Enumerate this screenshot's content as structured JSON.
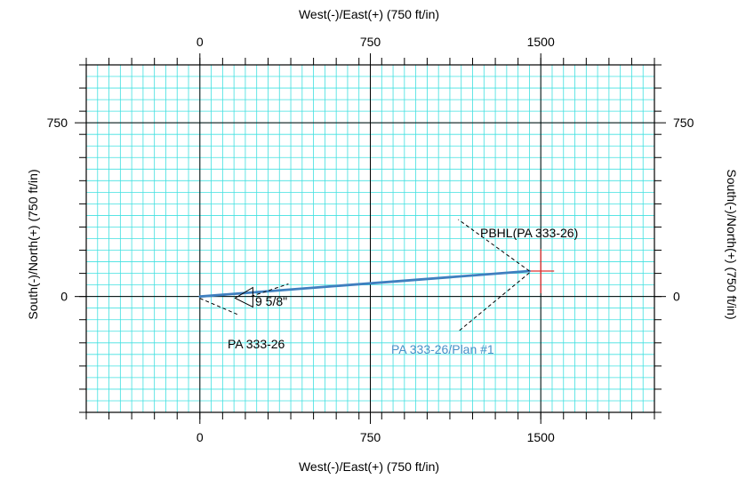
{
  "chart_data": {
    "type": "line",
    "title": "",
    "xlabel": "West(-)/East(+) (750 ft/in)",
    "ylabel": "South(-)/North(+) (750 ft/in)",
    "xlim": [
      -500,
      2000
    ],
    "ylim": [
      -500,
      1000
    ],
    "x_ticks": [
      0,
      750,
      1500
    ],
    "y_ticks": [
      0,
      750
    ],
    "x_tick_labels": [
      "0",
      "750",
      "1500"
    ],
    "y_tick_labels": [
      "0",
      "750"
    ],
    "grid": true,
    "series": [
      {
        "name": "PA 333-26/Plan #1",
        "color": "#3f7fbf",
        "x": [
          0,
          1450
        ],
        "y": [
          0,
          110
        ]
      }
    ],
    "annotations": [
      {
        "text": "PBHL(PA 333-26)",
        "x": 1285,
        "y": 280
      },
      {
        "text": "9 5/8\"",
        "x": 172,
        "y": -7
      },
      {
        "text": "PA 333-26",
        "x": 30,
        "y": -7
      },
      {
        "text": "PA 333-26/Plan #1",
        "x": 1285,
        "y": 3
      }
    ],
    "target": {
      "x": 1500,
      "y": 110,
      "color": "#e03030"
    }
  },
  "colors": {
    "grid": "#40e0e0",
    "axis": "#000000",
    "plan": "#3f7fbf",
    "plan_label": "#4a90c8",
    "target": "#e03030"
  }
}
